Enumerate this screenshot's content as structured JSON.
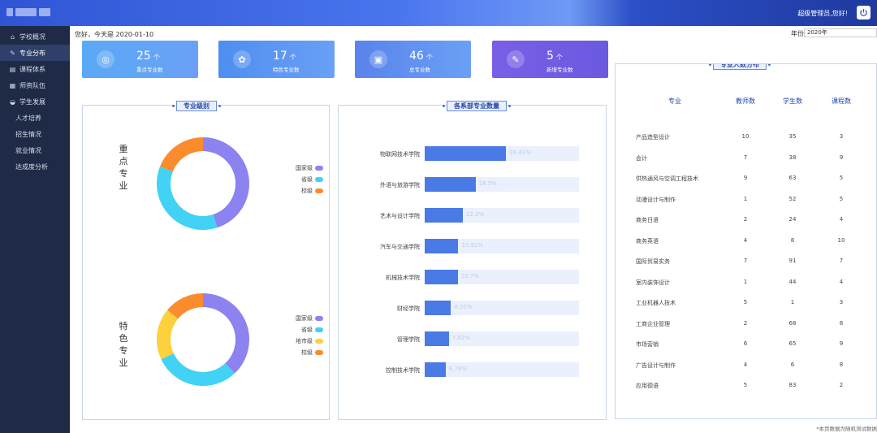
{
  "header": {
    "admin_text": "超级管理员,您好!"
  },
  "sidebar": {
    "items": [
      {
        "label": "学校概况",
        "icon": "building-icon",
        "active": false,
        "sub": false
      },
      {
        "label": "专业分布",
        "icon": "microscope-icon",
        "active": true,
        "sub": false
      },
      {
        "label": "课程体系",
        "icon": "book-icon",
        "active": false,
        "sub": false
      },
      {
        "label": "师资队伍",
        "icon": "people-icon",
        "active": false,
        "sub": false
      },
      {
        "label": "学生发展",
        "icon": "student-icon",
        "active": false,
        "sub": false,
        "expanded": true
      },
      {
        "label": "人才培养",
        "active": false,
        "sub": true
      },
      {
        "label": "招生情况",
        "active": false,
        "sub": true
      },
      {
        "label": "就业情况",
        "active": false,
        "sub": true
      },
      {
        "label": "达成度分析",
        "active": false,
        "sub": true
      }
    ]
  },
  "greeting": "您好，今天是 2020-01-10",
  "year": {
    "label": "年份",
    "value": "2020年"
  },
  "cards": [
    {
      "num": "25",
      "unit": "个",
      "label": "重点专业数",
      "icon": "target-icon",
      "color": "#5aa9f5"
    },
    {
      "num": "17",
      "unit": "个",
      "label": "特色专业数",
      "icon": "gear-icon",
      "color": "#4e8ef0"
    },
    {
      "num": "46",
      "unit": "个",
      "label": "总专业数",
      "icon": "folder-icon",
      "color": "#5a83ec"
    },
    {
      "num": "5",
      "unit": "个",
      "label": "新增专业数",
      "icon": "pencil-icon",
      "color": "#7a5ee6"
    }
  ],
  "major_level": {
    "title": "专业级别",
    "key_label": "重点专业",
    "feature_label": "特色专业",
    "legend_key": [
      {
        "name": "国家级",
        "color": "#8c82f0"
      },
      {
        "name": "省级",
        "color": "#41d2f5"
      },
      {
        "name": "校级",
        "color": "#fb8c2e"
      }
    ],
    "legend_feature": [
      {
        "name": "国家级",
        "color": "#8c82f0"
      },
      {
        "name": "省级",
        "color": "#41d2f5"
      },
      {
        "name": "地市级",
        "color": "#fcd13c"
      },
      {
        "name": "校级",
        "color": "#fb8c2e"
      }
    ]
  },
  "dept": {
    "title": "各系部专业数量"
  },
  "dist": {
    "title": "专业人数分布",
    "headers": [
      "专业",
      "教师数",
      "学生数",
      "课程数"
    ],
    "rows": [
      [
        "产品造型设计",
        "10",
        "35",
        "3"
      ],
      [
        "会计",
        "7",
        "38",
        "9"
      ],
      [
        "供热通风与空调工程技术",
        "9",
        "63",
        "5"
      ],
      [
        "动漫设计与制作",
        "1",
        "52",
        "5"
      ],
      [
        "商务日语",
        "2",
        "24",
        "4"
      ],
      [
        "商务英语",
        "4",
        "8",
        "10"
      ],
      [
        "国际贸易实务",
        "7",
        "91",
        "7"
      ],
      [
        "室内装饰设计",
        "1",
        "44",
        "4"
      ],
      [
        "工业机器人技术",
        "5",
        "1",
        "3"
      ],
      [
        "工商企业管理",
        "2",
        "68",
        "8"
      ],
      [
        "市场营销",
        "6",
        "65",
        "9"
      ],
      [
        "广告设计与制作",
        "4",
        "6",
        "8"
      ],
      [
        "应用德语",
        "5",
        "83",
        "2"
      ]
    ]
  },
  "footer": "*本页数据为随机测试数据",
  "chart_data": [
    {
      "type": "pie",
      "title": "重点专业",
      "slices": [
        {
          "name": "国家级",
          "value": 45,
          "color": "#8c82f0"
        },
        {
          "name": "省级",
          "value": 36,
          "color": "#41d2f5"
        },
        {
          "name": "校级",
          "value": 19,
          "color": "#fb8c2e"
        }
      ]
    },
    {
      "type": "pie",
      "title": "特色专业",
      "slices": [
        {
          "name": "国家级",
          "value": 38,
          "color": "#8c82f0"
        },
        {
          "name": "省级",
          "value": 30,
          "color": "#41d2f5"
        },
        {
          "name": "地市级",
          "value": 18,
          "color": "#fcd13c"
        },
        {
          "name": "校级",
          "value": 14,
          "color": "#fb8c2e"
        }
      ]
    },
    {
      "type": "bar",
      "orientation": "horizontal",
      "categories": [
        "物联网技术学院",
        "外语与旅游学院",
        "艺术与设计学院",
        "汽车与交通学院",
        "机械技术学院",
        "财经学院",
        "管理学院",
        "控制技术学院"
      ],
      "values": [
        26.43,
        16.5,
        12.3,
        10.91,
        10.7,
        8.55,
        7.82,
        6.78
      ],
      "labels": [
        "26.43%",
        "16.5%",
        "12.3%",
        "10.91%",
        "10.7%",
        "8.55%",
        "7.82%",
        "6.78%"
      ],
      "xlim": [
        0,
        50
      ]
    }
  ]
}
